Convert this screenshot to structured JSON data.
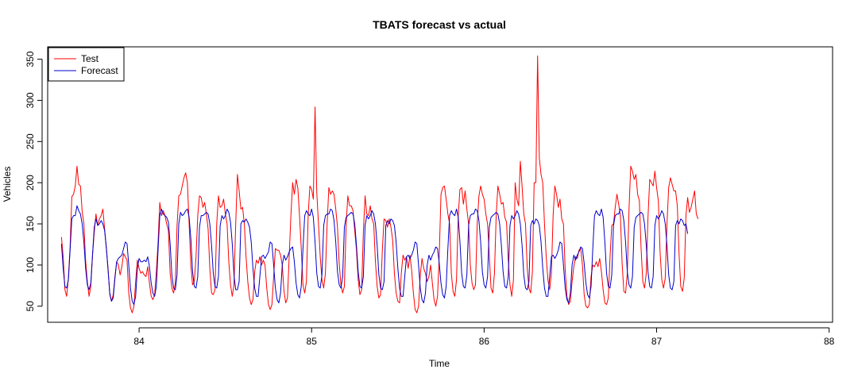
{
  "chart_data": {
    "type": "line",
    "title": "TBATS forecast vs actual",
    "xlabel": "Time",
    "ylabel": "Vehicles",
    "xlim": [
      83.47,
      88.02
    ],
    "ylim": [
      30.5,
      365
    ],
    "xticks": [
      84,
      85,
      86,
      87,
      88
    ],
    "yticks": [
      50,
      100,
      150,
      200,
      250,
      300,
      350
    ],
    "xtick_labels": [
      "84",
      "85",
      "86",
      "87",
      "88"
    ],
    "ytick_labels": [
      "50",
      "100",
      "150",
      "200",
      "250",
      "300",
      "350"
    ],
    "grid": false,
    "legend": {
      "position": "top-left",
      "entries": [
        {
          "label": "Test",
          "color": "#ff0000"
        },
        {
          "label": "Forecast",
          "color": "#0000cc"
        }
      ]
    },
    "x_start": 83.55,
    "x_step": 0.01,
    "series": [
      {
        "name": "Test",
        "color": "#ff0000",
        "values": [
          134,
          110,
          70,
          62,
          84,
          122,
          183,
          186,
          196,
          220,
          198,
          196,
          165,
          150,
          105,
          80,
          62,
          74,
          112,
          140,
          162,
          148,
          156,
          160,
          168,
          144,
          120,
          96,
          64,
          56,
          64,
          86,
          104,
          100,
          88,
          98,
          114,
          110,
          106,
          66,
          48,
          42,
          50,
          80,
          106,
          96,
          90,
          92,
          88,
          86,
          98,
          78,
          62,
          58,
          64,
          92,
          128,
          176,
          160,
          166,
          160,
          150,
          142,
          90,
          72,
          66,
          78,
          148,
          184,
          186,
          196,
          206,
          212,
          200,
          150,
          100,
          76,
          80,
          110,
          160,
          184,
          182,
          170,
          176,
          162,
          144,
          96,
          66,
          64,
          70,
          150,
          184,
          170,
          172,
          180,
          162,
          150,
          104,
          76,
          62,
          76,
          150,
          210,
          190,
          168,
          170,
          150,
          110,
          80,
          60,
          52,
          58,
          92,
          106,
          102,
          110,
          100,
          106,
          100,
          72,
          52,
          46,
          52,
          86,
          120,
          118,
          118,
          112,
          100,
          68,
          54,
          60,
          110,
          160,
          200,
          186,
          204,
          194,
          160,
          120,
          76,
          66,
          80,
          160,
          196,
          192,
          180,
          292,
          188,
          150,
          110,
          82,
          72,
          90,
          150,
          194,
          186,
          190,
          186,
          168,
          146,
          102,
          76,
          66,
          74,
          148,
          184,
          172,
          172,
          166,
          142,
          118,
          82,
          64,
          70,
          140,
          184,
          162,
          160,
          172,
          156,
          150,
          104,
          74,
          60,
          64,
          118,
          156,
          154,
          146,
          156,
          146,
          130,
          90,
          66,
          56,
          54,
          90,
          112,
          106,
          110,
          96,
          112,
          94,
          66,
          46,
          42,
          50,
          88,
          108,
          96,
          90,
          80,
          86,
          100,
          78,
          58,
          50,
          62,
          112,
          186,
          194,
          196,
          180,
          162,
          150,
          90,
          68,
          62,
          82,
          160,
          192,
          194,
          174,
          190,
          168,
          150,
          100,
          78,
          70,
          76,
          150,
          184,
          196,
          186,
          180,
          162,
          150,
          112,
          72,
          66,
          90,
          160,
          196,
          186,
          174,
          176,
          158,
          152,
          106,
          76,
          62,
          82,
          200,
          180,
          172,
          226,
          196,
          162,
          150,
          96,
          72,
          66,
          92,
          200,
          200,
          354,
          230,
          210,
          200,
          150,
          110,
          82,
          70,
          90,
          160,
          196,
          186,
          170,
          180,
          156,
          150,
          94,
          62,
          52,
          56,
          80,
          98,
          110,
          108,
          118,
          120,
          100,
          64,
          50,
          48,
          52,
          86,
          100,
          98,
          104,
          98,
          108,
          92,
          70,
          54,
          52,
          60,
          110,
          148,
          150,
          170,
          186,
          174,
          160,
          102,
          68,
          66,
          90,
          168,
          220,
          214,
          204,
          210,
          186,
          178,
          120,
          80,
          72,
          90,
          158,
          204,
          200,
          196,
          214,
          194,
          178,
          116,
          82,
          72,
          84,
          150,
          194,
          206,
          198,
          190,
          190,
          172,
          114,
          74,
          68,
          84,
          160,
          182,
          164,
          170,
          180,
          190,
          162,
          156
        ]
      },
      {
        "name": "Forecast",
        "color": "#0000cc",
        "values": [
          126,
          96,
          74,
          72,
          82,
          118,
          156,
          160,
          160,
          172,
          166,
          162,
          150,
          128,
          96,
          76,
          70,
          78,
          112,
          146,
          156,
          148,
          150,
          154,
          150,
          142,
          122,
          94,
          66,
          56,
          60,
          84,
          104,
          108,
          110,
          112,
          120,
          128,
          126,
          100,
          72,
          56,
          52,
          62,
          96,
          108,
          104,
          104,
          106,
          104,
          110,
          98,
          78,
          66,
          62,
          74,
          118,
          160,
          168,
          162,
          160,
          158,
          152,
          126,
          88,
          72,
          70,
          88,
          150,
          164,
          160,
          162,
          166,
          168,
          158,
          132,
          92,
          74,
          72,
          86,
          146,
          160,
          160,
          162,
          164,
          162,
          150,
          124,
          90,
          74,
          72,
          86,
          148,
          160,
          156,
          160,
          168,
          164,
          152,
          126,
          88,
          70,
          70,
          80,
          150,
          154,
          152,
          156,
          152,
          146,
          128,
          96,
          72,
          62,
          62,
          86,
          110,
          112,
          108,
          112,
          116,
          128,
          126,
          100,
          72,
          58,
          54,
          66,
          100,
          112,
          106,
          110,
          116,
          120,
          122,
          104,
          78,
          64,
          60,
          74,
          120,
          160,
          166,
          162,
          160,
          168,
          158,
          128,
          90,
          74,
          72,
          88,
          148,
          160,
          162,
          162,
          168,
          166,
          154,
          128,
          92,
          76,
          72,
          86,
          146,
          158,
          160,
          162,
          164,
          162,
          150,
          124,
          92,
          74,
          72,
          86,
          148,
          160,
          156,
          160,
          166,
          162,
          150,
          124,
          88,
          72,
          70,
          80,
          148,
          154,
          150,
          156,
          154,
          148,
          128,
          96,
          72,
          62,
          62,
          86,
          110,
          112,
          108,
          112,
          118,
          128,
          126,
          100,
          72,
          58,
          54,
          66,
          100,
          112,
          106,
          112,
          116,
          122,
          120,
          102,
          78,
          64,
          60,
          74,
          120,
          160,
          166,
          162,
          160,
          168,
          158,
          128,
          90,
          74,
          72,
          88,
          148,
          160,
          162,
          162,
          168,
          166,
          154,
          128,
          92,
          76,
          72,
          86,
          146,
          158,
          160,
          162,
          164,
          162,
          150,
          124,
          92,
          74,
          72,
          86,
          148,
          160,
          156,
          160,
          166,
          162,
          150,
          124,
          88,
          72,
          70,
          80,
          148,
          154,
          150,
          156,
          154,
          148,
          128,
          96,
          72,
          62,
          62,
          86,
          110,
          112,
          108,
          112,
          118,
          128,
          126,
          100,
          72,
          58,
          54,
          66,
          100,
          112,
          106,
          112,
          116,
          122,
          120,
          102,
          78,
          64,
          60,
          74,
          120,
          160,
          166,
          162,
          160,
          168,
          158,
          128,
          90,
          74,
          72,
          88,
          148,
          160,
          162,
          162,
          168,
          166,
          154,
          128,
          92,
          76,
          72,
          86,
          146,
          158,
          160,
          162,
          164,
          162,
          150,
          124,
          92,
          74,
          72,
          86,
          148,
          160,
          156,
          160,
          166,
          162,
          150,
          124,
          88,
          72,
          70,
          80,
          148,
          154,
          150,
          156,
          154,
          148,
          150,
          138
        ]
      }
    ]
  }
}
